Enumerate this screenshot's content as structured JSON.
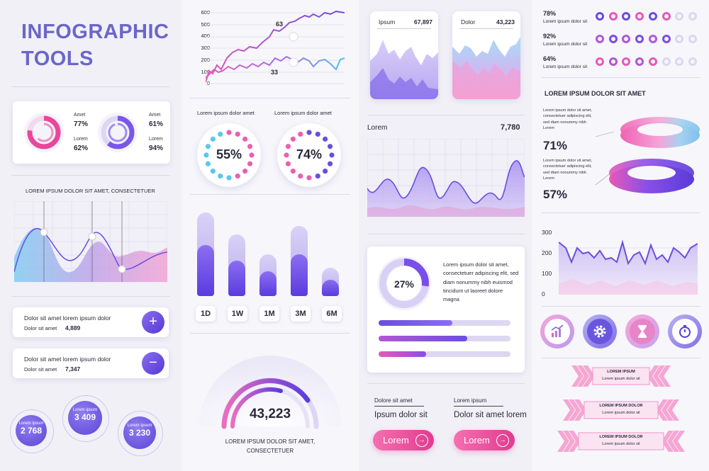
{
  "header": {
    "title_line1": "INFOGRAPHIC",
    "title_line2": "TOOLS"
  },
  "donuts": [
    {
      "label1": "Amet",
      "value1": "77%",
      "label2": "Lorem",
      "value2": "62%"
    },
    {
      "label1": "Amet",
      "value1": "61%",
      "label2": "Lorem",
      "value2": "94%"
    }
  ],
  "area_chart": {
    "title": "LOREM IPSUM DOLOR SIT AMET, CONSECTETUER"
  },
  "stats": [
    {
      "title": "Dolor sit amet lorem ipsum dolor",
      "label": "Dolor sit amet",
      "value": "4,889",
      "action": "+"
    },
    {
      "title": "Dolor sit amet lorem ipsum dolor",
      "label": "Dolor sit amet",
      "value": "7,347",
      "action": "−"
    }
  ],
  "bubbles": [
    {
      "label": "Lorem ipsum",
      "value": "2 768"
    },
    {
      "label": "Lorem ipsum",
      "value": "3 409"
    },
    {
      "label": "Lorem ipsum",
      "value": "3 230"
    }
  ],
  "line_chart": {
    "y_ticks": [
      "600",
      "500",
      "400",
      "300",
      "200",
      "100",
      "0"
    ],
    "label_high": "63",
    "label_low": "33"
  },
  "dotted_rings": [
    {
      "title": "Lorem ipsum dolor amet",
      "value": "55%"
    },
    {
      "title": "Lorem ipsum dolor amet",
      "value": "74%"
    }
  ],
  "bar_chart": {
    "periods": [
      "1D",
      "1W",
      "1M",
      "3M",
      "6M"
    ],
    "back": [
      0.92,
      0.68,
      0.46,
      0.77,
      0.31
    ],
    "front": [
      0.56,
      0.39,
      0.27,
      0.46,
      0.18
    ]
  },
  "gauge": {
    "value": "43,223",
    "caption_line1": "LOREM IPSUM DOLOR SIT AMET,",
    "caption_line2": "CONSECTETUER"
  },
  "mini_cards": [
    {
      "label": "Ipsum",
      "value": "67,897"
    },
    {
      "label": "Dolor",
      "value": "43,223"
    }
  ],
  "wave_chart": {
    "label": "Lorem",
    "value": "7,780"
  },
  "progress_card": {
    "value": "27%",
    "text": "Lorem ipsum dolor sit amet, consectetuer adipiscing elit, sed diam nonummy nibh euismod tincidunt ut laoreet dolore magna",
    "bars": [
      0.56,
      0.67,
      0.36
    ]
  },
  "footer_labels": [
    {
      "small": "Dolore sit amet",
      "big": "Ipsum dolor sit"
    },
    {
      "small": "Lorem ipsum",
      "big": "Dolor sit amet lorem"
    }
  ],
  "buttons": [
    {
      "label": "Lorem",
      "arrow": "→"
    },
    {
      "label": "Lorem",
      "arrow": "→"
    }
  ],
  "ring_rows": [
    {
      "pct": "78%",
      "text": "Lorem ipsum dolor sit",
      "filled": 6
    },
    {
      "pct": "92%",
      "text": "Lorem ipsum dolor sit",
      "filled": 6
    },
    {
      "pct": "64%",
      "text": "Lorem ipsum dolor sit",
      "filled": 5
    }
  ],
  "three_d": {
    "title": "LOREM IPSUM DOLOR SIT AMET",
    "items": [
      {
        "text": "Lorem ipsum dolor sit amet, consectetuer adipiscing elit, sed diam nonummy nibh Lorem",
        "value": "71%"
      },
      {
        "text": "Lorem ipsum dolor sit amet, consectetuer adipiscing elit, sed diam nonummy nibh Lorem",
        "value": "57%"
      }
    ]
  },
  "zigzag": {
    "y_ticks": [
      "300",
      "200",
      "100",
      "0"
    ]
  },
  "icons": [
    "chart-growth-icon",
    "gear-icon",
    "hourglass-icon",
    "stopwatch-icon"
  ],
  "chevron_banners": [
    {
      "line1": "LOREM IPSUM",
      "line2": "Lorem ipsum dolor sit"
    },
    {
      "line1": "LOREM IPSUM DOLOR",
      "line2": "Lorem ipsum dolor sit"
    },
    {
      "line1": "LOREM IPSUM DOLOR",
      "line2": "Lorem ipsum dolor sit"
    }
  ],
  "colors": {
    "accent": "#6b66c8",
    "pink": "#e8479a",
    "violet": "#6a4ee0"
  }
}
